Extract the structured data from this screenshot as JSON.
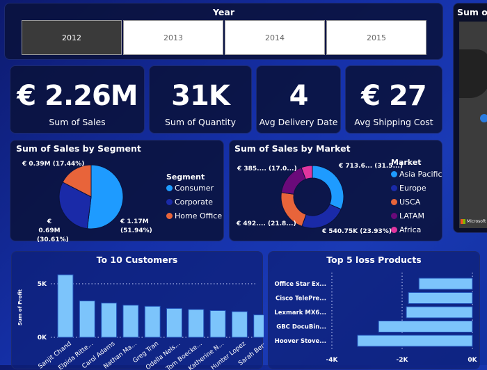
{
  "colors": {
    "accent": "#5ab4ff",
    "bar": "#7cc4fb"
  },
  "year_slicer": {
    "title": "Year",
    "options": [
      {
        "label": "2012",
        "selected": true
      },
      {
        "label": "2013",
        "selected": false
      },
      {
        "label": "2014",
        "selected": false
      },
      {
        "label": "2015",
        "selected": false
      }
    ]
  },
  "kpis": [
    {
      "value": "€ 2.26M",
      "label": "Sum of Sales"
    },
    {
      "value": "31K",
      "label": "Sum of Quantity"
    },
    {
      "value": "4",
      "label": "Avg Delivery Date"
    },
    {
      "value": "€ 27",
      "label": "Avg Shipping Cost"
    }
  ],
  "map": {
    "title": "Sum of",
    "attribution": "Microsoft"
  },
  "chart_data": [
    {
      "type": "pie",
      "title": "Sum of Sales by Segment",
      "legend_title": "Segment",
      "legend_position": "right",
      "slices": [
        {
          "name": "Consumer",
          "value": 1.17,
          "percent": 51.94,
          "label": "€ 1.17M (51.94%)",
          "color": "#1e9bff"
        },
        {
          "name": "Corporate",
          "value": 0.69,
          "percent": 30.61,
          "label": "€ 0.69M (30.61%)",
          "color": "#1a2aa8"
        },
        {
          "name": "Home Office",
          "value": 0.39,
          "percent": 17.44,
          "label": "€ 0.39M (17.44%)",
          "color": "#e8643a"
        }
      ]
    },
    {
      "type": "pie",
      "donut": true,
      "title": "Sum of Sales by Market",
      "legend_title": "Market",
      "legend_position": "right",
      "slices": [
        {
          "name": "Asia Pacific",
          "percent": 31.5,
          "label": "€ 713.6... (31.5...)",
          "color": "#1e9bff"
        },
        {
          "name": "Europe",
          "percent": 23.93,
          "label": "€ 540.75K (23.93%)",
          "color": "#1a2aa8"
        },
        {
          "name": "USCA",
          "percent": 21.8,
          "label": "€ 492.... (21.8...)",
          "color": "#e8643a"
        },
        {
          "name": "LATAM",
          "percent": 17.0,
          "label": "€ 385.... (17.0...)",
          "color": "#6a0a7a"
        },
        {
          "name": "Africa",
          "percent": 5.77,
          "label": "",
          "color": "#e0359e"
        }
      ]
    },
    {
      "type": "bar",
      "title": "To 10 Customers",
      "ylabel": "Sum of Profit",
      "yticks": [
        "0K",
        "5K"
      ],
      "ylim": [
        0,
        6000
      ],
      "grid": true,
      "categories": [
        "Sanjit Chand",
        "Elpida Ritte...",
        "Carol Adams",
        "Nathan Ma...",
        "Greg Tran",
        "Odella Nels...",
        "Tom Boecke...",
        "Katherine N...",
        "Hunter Lopez",
        "Sarah Bern"
      ],
      "values": [
        5840,
        3400,
        3200,
        3000,
        2900,
        2700,
        2600,
        2500,
        2400,
        2100
      ]
    },
    {
      "type": "bar",
      "orientation": "horizontal",
      "title": "Top 5 loss Products",
      "xticks": [
        "-4K",
        "-2K",
        "0K"
      ],
      "xlim": [
        -4000,
        0
      ],
      "grid": true,
      "categories": [
        "Office Star Ex...",
        "Cisco TelePre...",
        "Lexmark MX6...",
        "GBC DocuBin...",
        "Hoover Stove..."
      ],
      "values": [
        -1520,
        -1820,
        -1880,
        -2670,
        -3270
      ]
    }
  ]
}
